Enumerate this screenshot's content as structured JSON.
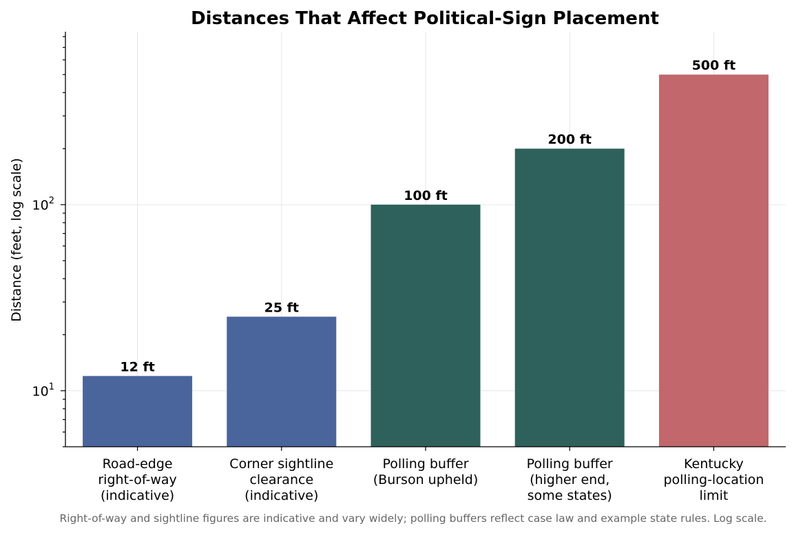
{
  "chart_data": {
    "type": "bar",
    "title": "Distances That Affect Political-Sign Placement",
    "ylabel": "Distance (feet, log scale)",
    "xlabel": "",
    "yscale": "log",
    "ylim": [
      5,
      850
    ],
    "grid": true,
    "categories": [
      [
        "Road-edge",
        "right-of-way",
        "(indicative)"
      ],
      [
        "Corner sightline",
        "clearance",
        "(indicative)"
      ],
      [
        "Polling buffer",
        "(Burson upheld)"
      ],
      [
        "Polling buffer",
        "(higher end,",
        "some states)"
      ],
      [
        "Kentucky",
        "polling-location",
        "limit"
      ]
    ],
    "values": [
      12,
      25,
      100,
      200,
      500
    ],
    "data_labels": [
      "12 ft",
      "25 ft",
      "100 ft",
      "200 ft",
      "500 ft"
    ],
    "colors": [
      "#4a659c",
      "#4a659c",
      "#2e615c",
      "#2e615c",
      "#c2676b"
    ],
    "y_major_ticks": [
      {
        "value": 10,
        "base": "10",
        "exp": "1"
      },
      {
        "value": 100,
        "base": "10",
        "exp": "2"
      }
    ],
    "footnote": "Right-of-way and sightline figures are indicative and vary widely; polling buffers reflect case law and example state rules. Log scale."
  }
}
